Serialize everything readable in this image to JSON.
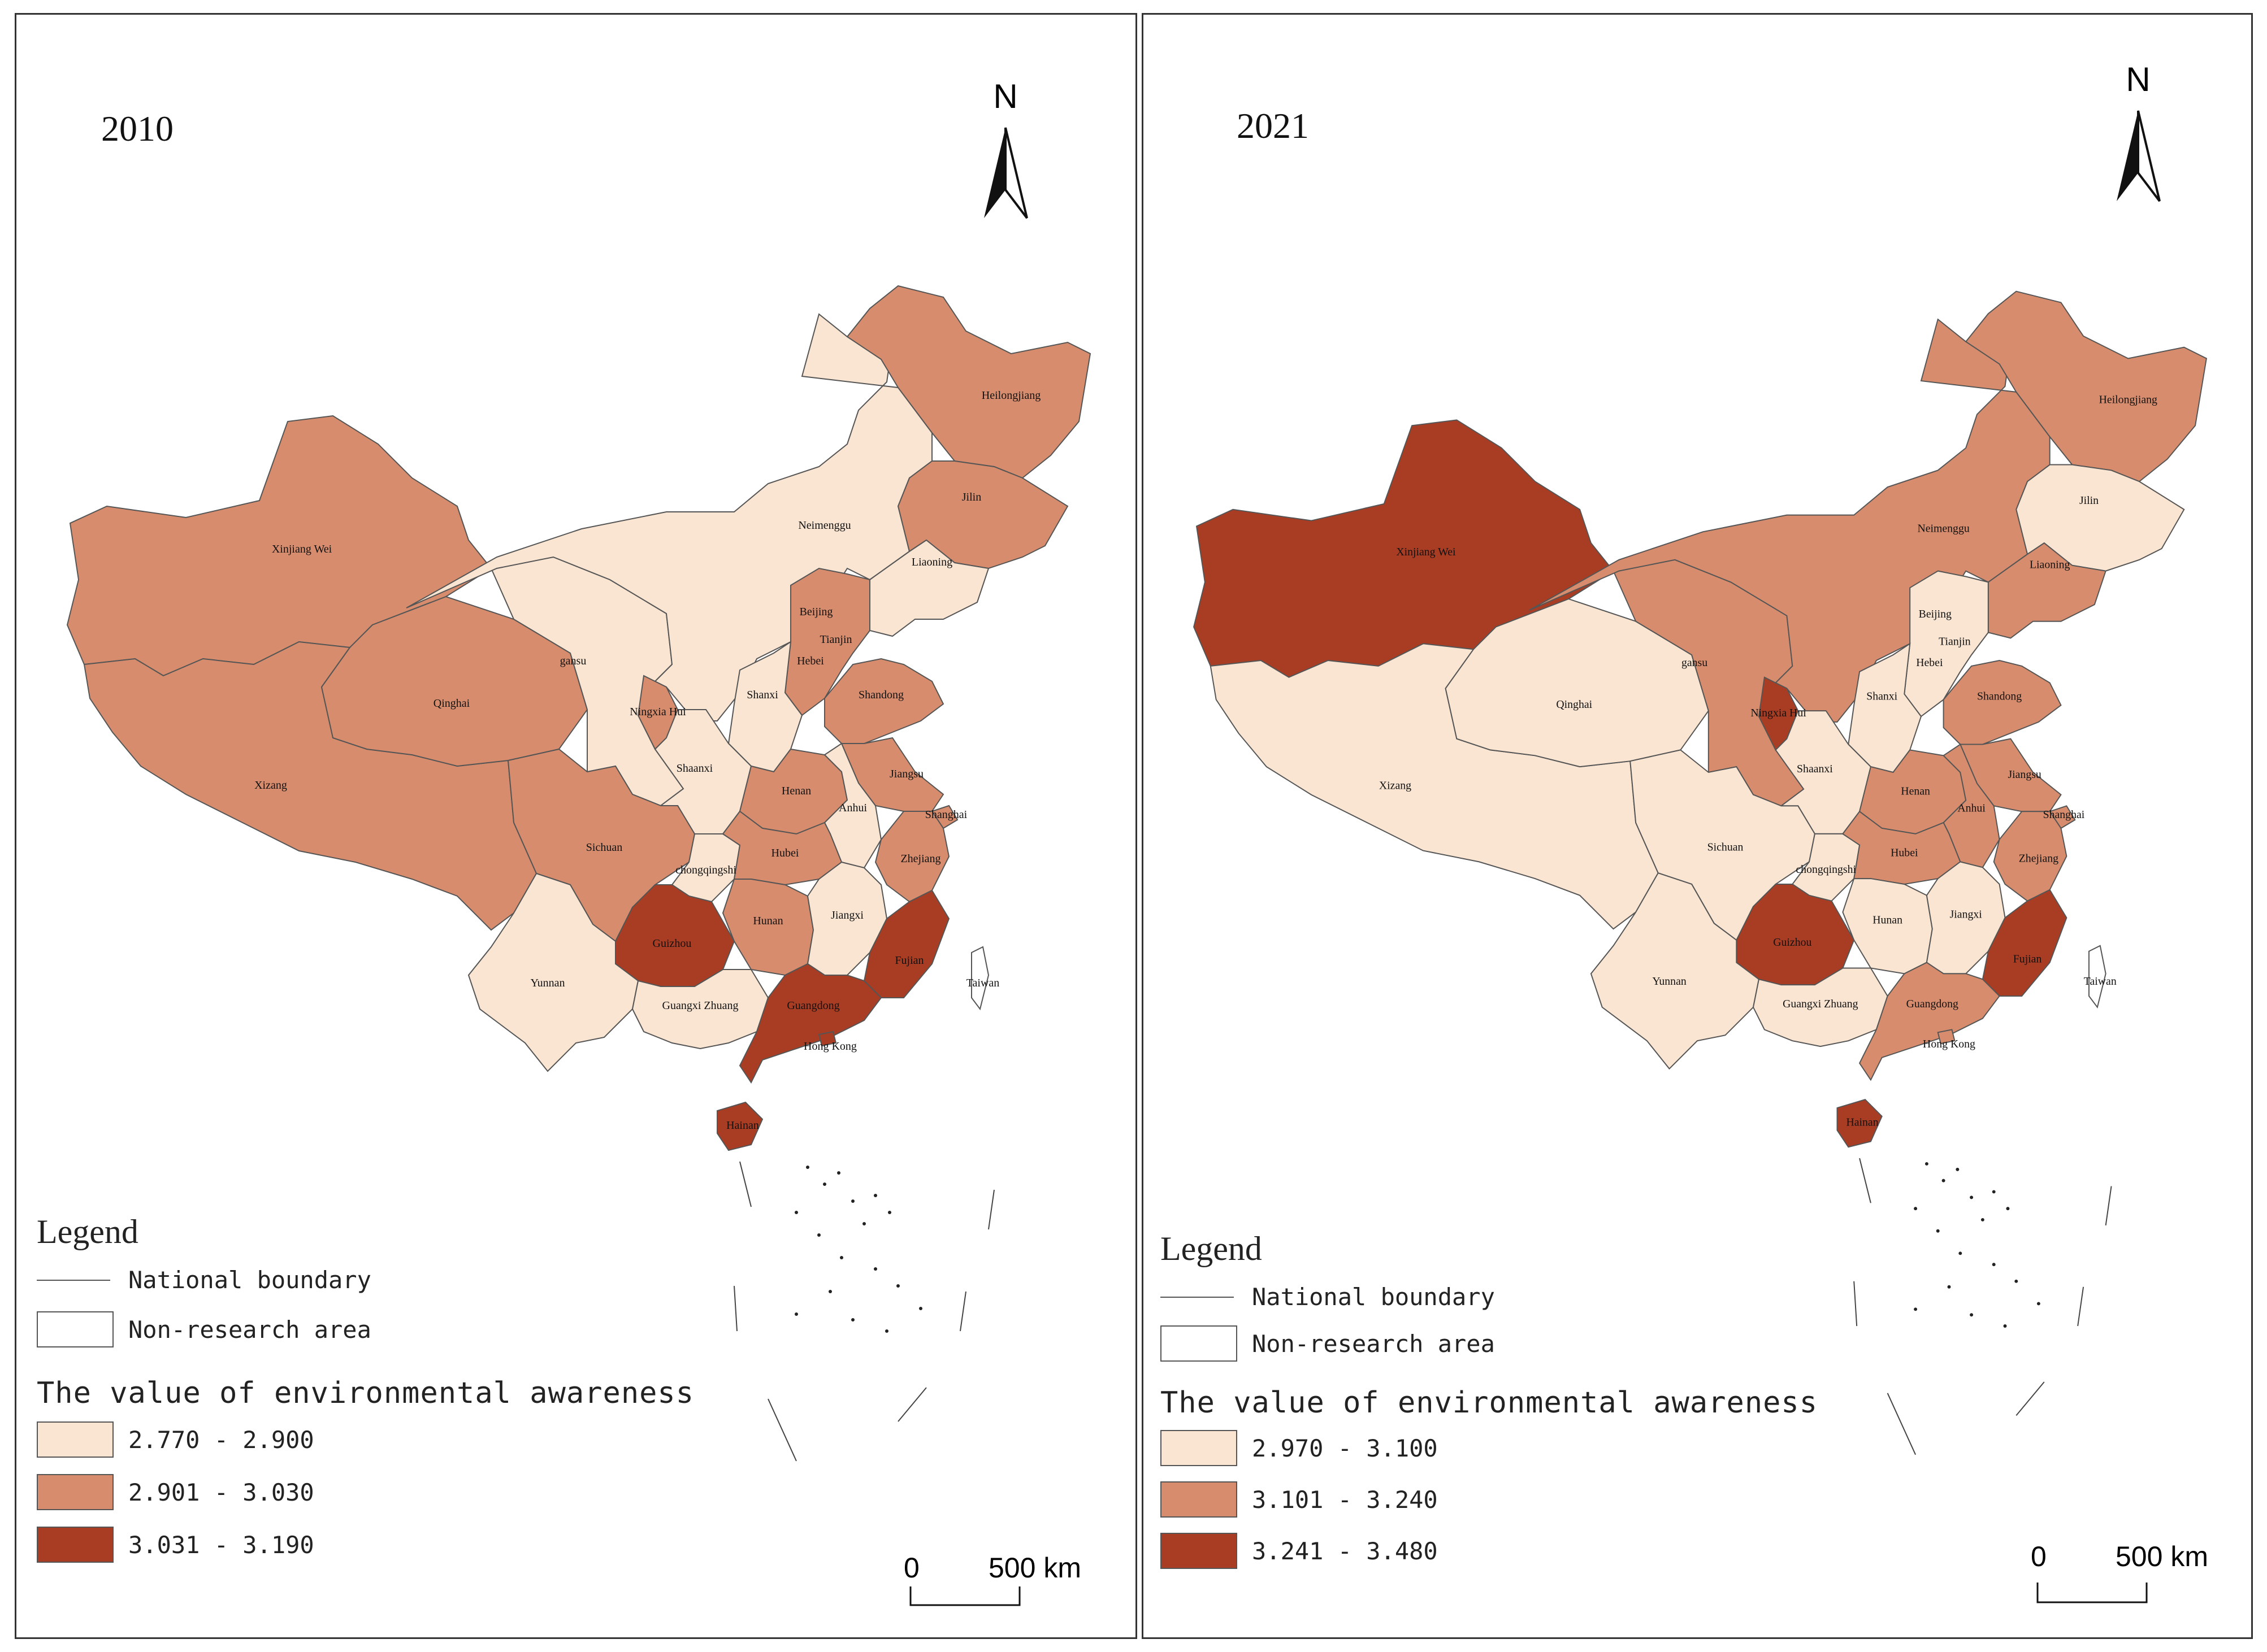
{
  "colors": {
    "low": "#f9e5d2",
    "mid": "#d78d6d",
    "high": "#a83d24",
    "boundary": "#444444"
  },
  "panels": [
    {
      "year": "2010",
      "north_label": "N",
      "legend": {
        "title": "Legend",
        "national_boundary": "National boundary",
        "non_research": "Non-research area",
        "value_title": "The value of environmental awareness",
        "classes": [
          {
            "label": "2.770 - 2.900",
            "color": "#f9e5d2"
          },
          {
            "label": "2.901 - 3.030",
            "color": "#d78d6d"
          },
          {
            "label": "3.031 - 3.190",
            "color": "#a83d24"
          }
        ]
      },
      "scale": {
        "zero": "0",
        "distance": "500 km"
      },
      "provinces": {
        "xinjiang": "mid",
        "xizang": "mid",
        "qinghai": "mid",
        "gansu": "low",
        "neimenggu": "low",
        "heilongjiang": "mid",
        "jilin": "mid",
        "liaoning": "low",
        "beijing": "high",
        "tianjin": "high",
        "hebei": "mid",
        "shanxi": "low",
        "shandong": "mid",
        "ningxia": "mid",
        "shaanxi": "low",
        "henan": "mid",
        "jiangsu": "mid",
        "anhui": "low",
        "shanghai": "mid",
        "sichuan": "mid",
        "chongqing": "low",
        "hubei": "mid",
        "zhejiang": "mid",
        "hunan": "mid",
        "jiangxi": "low",
        "fujian": "high",
        "guizhou": "high",
        "yunnan": "low",
        "guangxi": "low",
        "guangdong": "high",
        "hongkong": "high",
        "hainan": "high",
        "taiwan": "none"
      },
      "labels": {
        "xinjiang": "Xinjiang Wei",
        "xizang": "Xizang",
        "qinghai": "Qinghai",
        "gansu": "gansu",
        "neimenggu": "Neimenggu",
        "heilongjiang": "Heilongjiang",
        "jilin": "Jilin",
        "liaoning": "Liaoning",
        "beijing": "Beijing",
        "tianjin": "Tianjin",
        "hebei": "Hebei",
        "shanxi": "Shanxi",
        "shandong": "Shandong",
        "ningxia": "Ningxia Hui",
        "shaanxi": "Shaanxi",
        "henan": "Henan",
        "jiangsu": "Jiangsu",
        "anhui": "Anhui",
        "shanghai": "Shanghai",
        "sichuan": "Sichuan",
        "chongqing": "chongqingshi",
        "hubei": "Hubei",
        "zhejiang": "Zhejiang",
        "hunan": "Hunan",
        "jiangxi": "Jiangxi",
        "fujian": "Fujian",
        "guizhou": "Guizhou",
        "yunnan": "Yunnan",
        "guangxi": "Guangxi Zhuang",
        "guangdong": "Guangdong",
        "hongkong": "Hong Kong",
        "hainan": "Hainan",
        "taiwan": "Taiwan"
      }
    },
    {
      "year": "2021",
      "north_label": "N",
      "legend": {
        "title": "Legend",
        "national_boundary": "National boundary",
        "non_research": "Non-research area",
        "value_title": "The value of environmental awareness",
        "classes": [
          {
            "label": "2.970 - 3.100",
            "color": "#f9e5d2"
          },
          {
            "label": "3.101 - 3.240",
            "color": "#d78d6d"
          },
          {
            "label": "3.241 - 3.480",
            "color": "#a83d24"
          }
        ]
      },
      "scale": {
        "zero": "0",
        "distance": "500 km"
      },
      "provinces": {
        "xinjiang": "high",
        "xizang": "low",
        "qinghai": "low",
        "gansu": "mid",
        "neimenggu": "mid",
        "heilongjiang": "mid",
        "jilin": "low",
        "liaoning": "mid",
        "beijing": "high",
        "tianjin": "mid",
        "hebei": "low",
        "shanxi": "low",
        "shandong": "mid",
        "ningxia": "high",
        "shaanxi": "low",
        "henan": "mid",
        "jiangsu": "mid",
        "anhui": "mid",
        "shanghai": "mid",
        "sichuan": "low",
        "chongqing": "low",
        "hubei": "mid",
        "zhejiang": "mid",
        "hunan": "low",
        "jiangxi": "low",
        "fujian": "high",
        "guizhou": "high",
        "yunnan": "low",
        "guangxi": "low",
        "guangdong": "mid",
        "hongkong": "mid",
        "hainan": "high",
        "taiwan": "none"
      },
      "labels": {
        "xinjiang": "Xinjiang Wei",
        "xizang": "Xizang",
        "qinghai": "Qinghai",
        "gansu": "gansu",
        "neimenggu": "Neimenggu",
        "heilongjiang": "Heilongjiang",
        "jilin": "Jilin",
        "liaoning": "Liaoning",
        "beijing": "Beijing",
        "tianjin": "Tianjin",
        "hebei": "Hebei",
        "shanxi": "Shanxi",
        "shandong": "Shandong",
        "ningxia": "Ningxia Hui",
        "shaanxi": "Shaanxi",
        "henan": "Henan",
        "jiangsu": "Jiangsu",
        "anhui": "Anhui",
        "shanghai": "Shanghai",
        "sichuan": "Sichuan",
        "chongqing": "chongqingshi",
        "hubei": "Hubei",
        "zhejiang": "Zhejiang",
        "hunan": "Hunan",
        "jiangxi": "Jiangxi",
        "fujian": "Fujian",
        "guizhou": "Guizhou",
        "yunnan": "Yunnan",
        "guangxi": "Guangxi Zhuang",
        "guangdong": "Guangdong",
        "hongkong": "Hong Kong",
        "hainan": "Hainan",
        "taiwan": "Taiwan"
      }
    }
  ]
}
